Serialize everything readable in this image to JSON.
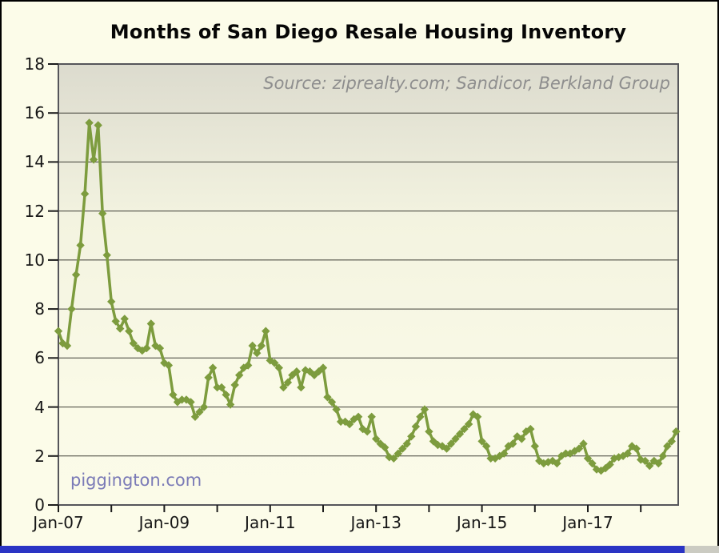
{
  "title": "Months of San Diego Resale Housing Inventory",
  "annotations": {
    "source": "Source: ziprealty.com; Sandicor, Berkland Group",
    "watermark": "piggington.com"
  },
  "colors": {
    "line": "#7d9c3e",
    "page_background": "#fcfce9",
    "plot_gradient_top": "#dcdbce",
    "plot_gradient_bottom": "#fbfbe8",
    "watermark_text": "#7b7bb7",
    "source_text": "#8e8e8e",
    "bottom_bar_blue": "#2a34c4",
    "bottom_bar_gray": "#cbcbc2"
  },
  "chart_data": {
    "type": "line",
    "title": "Months of San Diego Resale Housing Inventory",
    "xlabel": "",
    "ylabel": "",
    "x_start": "Jan-2007",
    "x_end": "Sep-2018",
    "x_frequency": "monthly",
    "ylim": [
      0,
      18
    ],
    "y_ticks": [
      0,
      2,
      4,
      6,
      8,
      10,
      12,
      14,
      16,
      18
    ],
    "x_tick_labels": [
      "Jan-07",
      "",
      "Jan-09",
      "",
      "Jan-11",
      "",
      "Jan-13",
      "",
      "Jan-15",
      "",
      "Jan-17",
      ""
    ],
    "grid": "horizontal",
    "legend": "none",
    "marker": "diamond",
    "line_color": "#7d9c3e",
    "values": [
      7.1,
      6.6,
      6.5,
      8.0,
      9.4,
      10.6,
      12.7,
      15.6,
      14.1,
      15.5,
      11.9,
      10.2,
      8.3,
      7.5,
      7.2,
      7.6,
      7.1,
      6.6,
      6.4,
      6.3,
      6.4,
      7.4,
      6.5,
      6.4,
      5.8,
      5.7,
      4.5,
      4.2,
      4.3,
      4.3,
      4.2,
      3.6,
      3.8,
      4.0,
      5.2,
      5.6,
      4.8,
      4.8,
      4.5,
      4.1,
      4.9,
      5.3,
      5.6,
      5.7,
      6.5,
      6.2,
      6.5,
      7.1,
      5.9,
      5.8,
      5.6,
      4.8,
      5.0,
      5.3,
      5.45,
      4.8,
      5.5,
      5.45,
      5.3,
      5.45,
      5.6,
      4.4,
      4.2,
      3.9,
      3.4,
      3.4,
      3.3,
      3.5,
      3.6,
      3.1,
      3.0,
      3.6,
      2.7,
      2.5,
      2.35,
      1.95,
      1.9,
      2.1,
      2.3,
      2.5,
      2.8,
      3.2,
      3.6,
      3.9,
      3.0,
      2.6,
      2.45,
      2.4,
      2.3,
      2.5,
      2.7,
      2.9,
      3.1,
      3.3,
      3.7,
      3.6,
      2.6,
      2.4,
      1.9,
      1.9,
      2.0,
      2.1,
      2.4,
      2.5,
      2.8,
      2.7,
      3.0,
      3.1,
      2.4,
      1.8,
      1.7,
      1.75,
      1.8,
      1.7,
      2.0,
      2.1,
      2.1,
      2.2,
      2.3,
      2.5,
      1.9,
      1.7,
      1.45,
      1.4,
      1.5,
      1.65,
      1.9,
      1.95,
      2.0,
      2.1,
      2.4,
      2.3,
      1.85,
      1.8,
      1.6,
      1.8,
      1.7,
      2.0,
      2.4,
      2.6,
      3.0
    ]
  }
}
